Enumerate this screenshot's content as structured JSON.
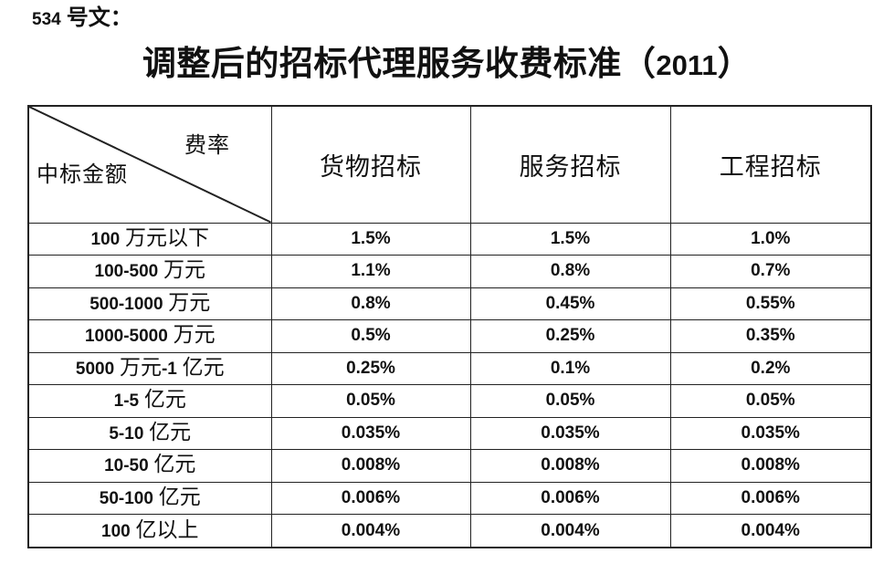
{
  "doc_number": "534 号文：",
  "title": "调整后的招标代理服务收费标准（2011）",
  "table": {
    "corner": {
      "top_right_label": "费率",
      "bottom_left_label": "中标金额"
    },
    "column_headers": [
      "货物招标",
      "服务招标",
      "工程招标"
    ],
    "rows": [
      {
        "label": "100 万元以下",
        "values": [
          "1.5%",
          "1.5%",
          "1.0%"
        ]
      },
      {
        "label": "100-500 万元",
        "values": [
          "1.1%",
          "0.8%",
          "0.7%"
        ]
      },
      {
        "label": "500-1000 万元",
        "values": [
          "0.8%",
          "0.45%",
          "0.55%"
        ]
      },
      {
        "label": "1000-5000 万元",
        "values": [
          "0.5%",
          "0.25%",
          "0.35%"
        ]
      },
      {
        "label": "5000 万元-1 亿元",
        "values": [
          "0.25%",
          "0.1%",
          "0.2%"
        ]
      },
      {
        "label": "1-5 亿元",
        "values": [
          "0.05%",
          "0.05%",
          "0.05%"
        ]
      },
      {
        "label": "5-10 亿元",
        "values": [
          "0.035%",
          "0.035%",
          "0.035%"
        ]
      },
      {
        "label": "10-50 亿元",
        "values": [
          "0.008%",
          "0.008%",
          "0.008%"
        ]
      },
      {
        "label": "50-100 亿元",
        "values": [
          "0.006%",
          "0.006%",
          "0.006%"
        ]
      },
      {
        "label": "100 亿以上",
        "values": [
          "0.004%",
          "0.004%",
          "0.004%"
        ]
      }
    ]
  },
  "colors": {
    "text": "#111111",
    "border": "#222222",
    "background": "#ffffff"
  }
}
